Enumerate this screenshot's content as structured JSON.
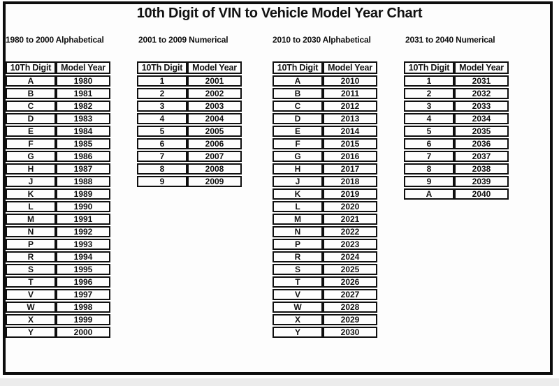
{
  "page_title": "10th Digit of VIN to Vehicle Model Year Chart",
  "colors": {
    "text": "#111111",
    "table_border": "#0f0f0f",
    "frame_border": "#0d0d0d",
    "background": "#fdfdfd",
    "bottom_strip": "#ececec"
  },
  "chart_data": [
    {
      "type": "table",
      "title": "1980 to 2000 Alphabetical",
      "columns": [
        "10Th Digit",
        "Model Year"
      ],
      "rows": [
        [
          "A",
          "1980"
        ],
        [
          "B",
          "1981"
        ],
        [
          "C",
          "1982"
        ],
        [
          "D",
          "1983"
        ],
        [
          "E",
          "1984"
        ],
        [
          "F",
          "1985"
        ],
        [
          "G",
          "1986"
        ],
        [
          "H",
          "1987"
        ],
        [
          "J",
          "1988"
        ],
        [
          "K",
          "1989"
        ],
        [
          "L",
          "1990"
        ],
        [
          "M",
          "1991"
        ],
        [
          "N",
          "1992"
        ],
        [
          "P",
          "1993"
        ],
        [
          "R",
          "1994"
        ],
        [
          "S",
          "1995"
        ],
        [
          "T",
          "1996"
        ],
        [
          "V",
          "1997"
        ],
        [
          "W",
          "1998"
        ],
        [
          "X",
          "1999"
        ],
        [
          "Y",
          "2000"
        ]
      ]
    },
    {
      "type": "table",
      "title": "2001 to 2009 Numerical",
      "columns": [
        "10Th Digit",
        "Model Year"
      ],
      "rows": [
        [
          "1",
          "2001"
        ],
        [
          "2",
          "2002"
        ],
        [
          "3",
          "2003"
        ],
        [
          "4",
          "2004"
        ],
        [
          "5",
          "2005"
        ],
        [
          "6",
          "2006"
        ],
        [
          "7",
          "2007"
        ],
        [
          "8",
          "2008"
        ],
        [
          "9",
          "2009"
        ]
      ]
    },
    {
      "type": "table",
      "title": "2010 to 2030 Alphabetical",
      "columns": [
        "10Th Digit",
        "Model Year"
      ],
      "rows": [
        [
          "A",
          "2010"
        ],
        [
          "B",
          "2011"
        ],
        [
          "C",
          "2012"
        ],
        [
          "D",
          "2013"
        ],
        [
          "E",
          "2014"
        ],
        [
          "F",
          "2015"
        ],
        [
          "G",
          "2016"
        ],
        [
          "H",
          "2017"
        ],
        [
          "J",
          "2018"
        ],
        [
          "K",
          "2019"
        ],
        [
          "L",
          "2020"
        ],
        [
          "M",
          "2021"
        ],
        [
          "N",
          "2022"
        ],
        [
          "P",
          "2023"
        ],
        [
          "R",
          "2024"
        ],
        [
          "S",
          "2025"
        ],
        [
          "T",
          "2026"
        ],
        [
          "V",
          "2027"
        ],
        [
          "W",
          "2028"
        ],
        [
          "X",
          "2029"
        ],
        [
          "Y",
          "2030"
        ]
      ]
    },
    {
      "type": "table",
      "title": "2031 to 2040 Numerical",
      "columns": [
        "10Th Digit",
        "Model Year"
      ],
      "rows": [
        [
          "1",
          "2031"
        ],
        [
          "2",
          "2032"
        ],
        [
          "3",
          "2033"
        ],
        [
          "4",
          "2034"
        ],
        [
          "5",
          "2035"
        ],
        [
          "6",
          "2036"
        ],
        [
          "7",
          "2037"
        ],
        [
          "8",
          "2038"
        ],
        [
          "9",
          "2039"
        ],
        [
          "A",
          "2040"
        ]
      ]
    }
  ]
}
